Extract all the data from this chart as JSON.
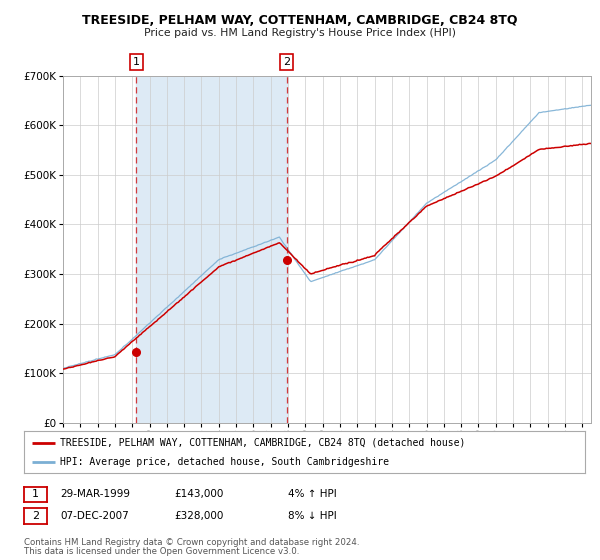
{
  "title": "TREESIDE, PELHAM WAY, COTTENHAM, CAMBRIDGE, CB24 8TQ",
  "subtitle": "Price paid vs. HM Land Registry's House Price Index (HPI)",
  "legend_line1": "TREESIDE, PELHAM WAY, COTTENHAM, CAMBRIDGE, CB24 8TQ (detached house)",
  "legend_line2": "HPI: Average price, detached house, South Cambridgeshire",
  "annotation1_date": "29-MAR-1999",
  "annotation1_price": "£143,000",
  "annotation1_hpi": "4% ↑ HPI",
  "annotation2_date": "07-DEC-2007",
  "annotation2_price": "£328,000",
  "annotation2_hpi": "8% ↓ HPI",
  "footer1": "Contains HM Land Registry data © Crown copyright and database right 2024.",
  "footer2": "This data is licensed under the Open Government Licence v3.0.",
  "sale1_year": 1999.23,
  "sale1_value": 143000,
  "sale2_year": 2007.92,
  "sale2_value": 328000,
  "hpi_color": "#7bafd4",
  "price_color": "#cc0000",
  "shading_color": "#ddeaf5",
  "grid_color": "#cccccc",
  "background_color": "#ffffff",
  "ylim": [
    0,
    700000
  ],
  "xlim_start": 1995.0,
  "xlim_end": 2025.5
}
